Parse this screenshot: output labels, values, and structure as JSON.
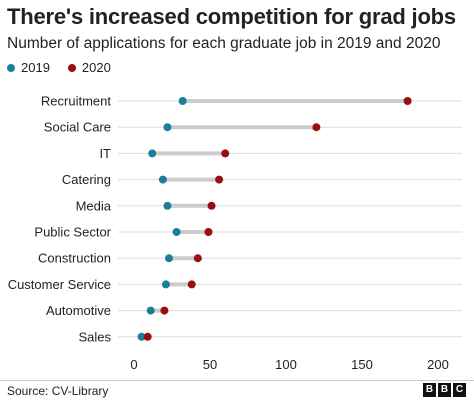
{
  "title": "There's increased competition for grad jobs",
  "subtitle": "Number of applications for each graduate job in 2019 and 2020",
  "source": "Source: CV-Library",
  "logo": {
    "letters": [
      "B",
      "B",
      "C"
    ]
  },
  "colors": {
    "s2019": "#1b7f9b",
    "s2020": "#980e12",
    "connector": "#cccccc",
    "grid": "#dddddd"
  },
  "chart_data": {
    "type": "dumbbell",
    "categories": [
      "Recruitment",
      "Social Care",
      "IT",
      "Catering",
      "Media",
      "Public Sector",
      "Construction",
      "Customer Service",
      "Automotive",
      "Sales"
    ],
    "series": [
      {
        "name": "2019",
        "values": [
          32,
          22,
          12,
          19,
          22,
          28,
          23,
          21,
          11,
          5
        ]
      },
      {
        "name": "2020",
        "values": [
          180,
          120,
          60,
          56,
          51,
          49,
          42,
          38,
          20,
          9
        ]
      }
    ],
    "xticks": [
      0,
      50,
      100,
      150,
      200
    ],
    "xlim": [
      0,
      200
    ],
    "legend_position": "top-left",
    "grid": true
  }
}
